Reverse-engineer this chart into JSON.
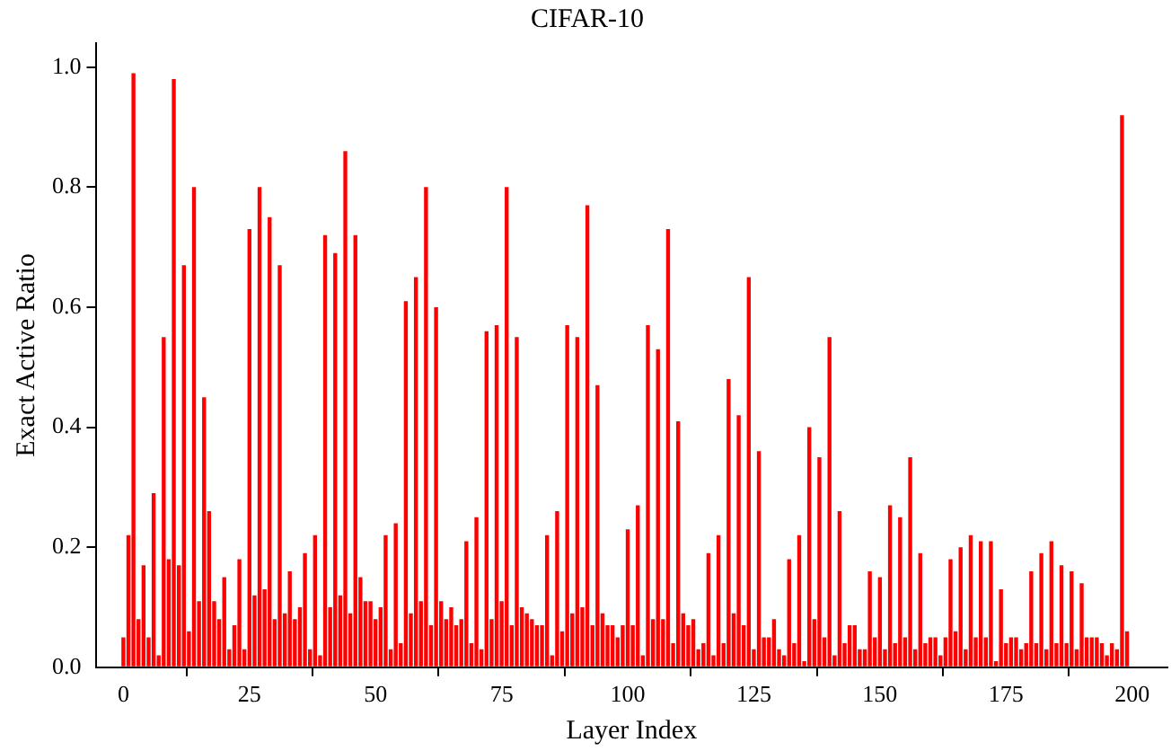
{
  "chart_data": {
    "type": "bar",
    "title": "CIFAR-10",
    "xlabel": "Layer Index",
    "ylabel": "Exact Active Ratio",
    "x": [
      0,
      1,
      2,
      3,
      4,
      5,
      6,
      7,
      8,
      9,
      10,
      11,
      12,
      13,
      14,
      15,
      16,
      17,
      18,
      19,
      20,
      21,
      22,
      23,
      24,
      25,
      26,
      27,
      28,
      29,
      30,
      31,
      32,
      33,
      34,
      35,
      36,
      37,
      38,
      39,
      40,
      41,
      42,
      43,
      44,
      45,
      46,
      47,
      48,
      49,
      50,
      51,
      52,
      53,
      54,
      55,
      56,
      57,
      58,
      59,
      60,
      61,
      62,
      63,
      64,
      65,
      66,
      67,
      68,
      69,
      70,
      71,
      72,
      73,
      74,
      75,
      76,
      77,
      78,
      79,
      80,
      81,
      82,
      83,
      84,
      85,
      86,
      87,
      88,
      89,
      90,
      91,
      92,
      93,
      94,
      95,
      96,
      97,
      98,
      99,
      100,
      101,
      102,
      103,
      104,
      105,
      106,
      107,
      108,
      109,
      110,
      111,
      112,
      113,
      114,
      115,
      116,
      117,
      118,
      119,
      120,
      121,
      122,
      123,
      124,
      125,
      126,
      127,
      128,
      129,
      130,
      131,
      132,
      133,
      134,
      135,
      136,
      137,
      138,
      139,
      140,
      141,
      142,
      143,
      144,
      145,
      146,
      147,
      148,
      149,
      150,
      151,
      152,
      153,
      154,
      155,
      156,
      157,
      158,
      159,
      160,
      161,
      162,
      163,
      164,
      165,
      166,
      167,
      168,
      169,
      170,
      171,
      172,
      173,
      174,
      175,
      176,
      177,
      178,
      179,
      180,
      181,
      182,
      183,
      184,
      185,
      186,
      187,
      188,
      189,
      190,
      191,
      192,
      193,
      194,
      195,
      196,
      197,
      198,
      199
    ],
    "values": [
      0.05,
      0.22,
      0.99,
      0.08,
      0.17,
      0.05,
      0.29,
      0.02,
      0.55,
      0.18,
      0.98,
      0.17,
      0.67,
      0.06,
      0.8,
      0.11,
      0.45,
      0.26,
      0.11,
      0.08,
      0.15,
      0.03,
      0.07,
      0.18,
      0.03,
      0.73,
      0.12,
      0.8,
      0.13,
      0.75,
      0.08,
      0.67,
      0.09,
      0.16,
      0.08,
      0.1,
      0.19,
      0.03,
      0.22,
      0.02,
      0.72,
      0.1,
      0.69,
      0.12,
      0.86,
      0.09,
      0.72,
      0.15,
      0.11,
      0.11,
      0.08,
      0.1,
      0.22,
      0.03,
      0.24,
      0.04,
      0.61,
      0.09,
      0.65,
      0.11,
      0.8,
      0.07,
      0.6,
      0.11,
      0.08,
      0.1,
      0.07,
      0.08,
      0.21,
      0.04,
      0.25,
      0.03,
      0.56,
      0.08,
      0.57,
      0.11,
      0.8,
      0.07,
      0.55,
      0.1,
      0.09,
      0.08,
      0.07,
      0.07,
      0.22,
      0.02,
      0.26,
      0.06,
      0.57,
      0.09,
      0.55,
      0.1,
      0.77,
      0.07,
      0.47,
      0.09,
      0.07,
      0.07,
      0.05,
      0.07,
      0.23,
      0.07,
      0.27,
      0.02,
      0.57,
      0.08,
      0.53,
      0.08,
      0.73,
      0.04,
      0.41,
      0.09,
      0.07,
      0.08,
      0.03,
      0.04,
      0.19,
      0.02,
      0.22,
      0.04,
      0.48,
      0.09,
      0.42,
      0.07,
      0.65,
      0.03,
      0.36,
      0.05,
      0.05,
      0.08,
      0.03,
      0.02,
      0.18,
      0.04,
      0.22,
      0.01,
      0.4,
      0.08,
      0.35,
      0.05,
      0.55,
      0.02,
      0.26,
      0.04,
      0.07,
      0.07,
      0.03,
      0.03,
      0.16,
      0.05,
      0.15,
      0.03,
      0.27,
      0.04,
      0.25,
      0.05,
      0.35,
      0.03,
      0.19,
      0.04,
      0.05,
      0.05,
      0.02,
      0.05,
      0.18,
      0.06,
      0.2,
      0.03,
      0.22,
      0.05,
      0.21,
      0.05,
      0.21,
      0.01,
      0.13,
      0.04,
      0.05,
      0.05,
      0.03,
      0.04,
      0.16,
      0.04,
      0.19,
      0.03,
      0.21,
      0.04,
      0.17,
      0.04,
      0.16,
      0.03,
      0.14,
      0.05,
      0.05,
      0.05,
      0.04,
      0.02,
      0.04,
      0.03,
      0.92,
      0.06
    ],
    "color": "#ff0000",
    "xlim": [
      -5.5,
      207
    ],
    "xticks": [
      0,
      25,
      50,
      75,
      100,
      125,
      150,
      175,
      200
    ],
    "ylim": [
      0,
      1.04
    ],
    "yticks": [
      {
        "value": 0,
        "label": "0.0"
      },
      {
        "value": 0.2,
        "label": "0.2"
      },
      {
        "value": 0.4,
        "label": "0.4"
      },
      {
        "value": 0.6,
        "label": "0.6"
      },
      {
        "value": 0.8,
        "label": "0.8"
      },
      {
        "value": 1,
        "label": "1.0"
      }
    ],
    "grid": false,
    "legend": false
  }
}
